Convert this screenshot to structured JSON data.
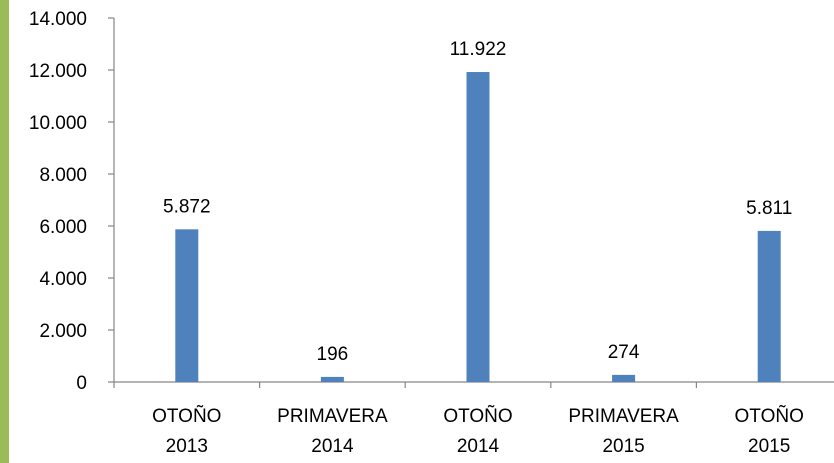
{
  "chart_data": {
    "type": "bar",
    "categories": [
      [
        "OTOÑO",
        "2013"
      ],
      [
        "PRIMAVERA",
        "2014"
      ],
      [
        "OTOÑO",
        "2014"
      ],
      [
        "PRIMAVERA",
        "2015"
      ],
      [
        "OTOÑO",
        "2015"
      ]
    ],
    "values": [
      5872,
      196,
      11922,
      274,
      5811
    ],
    "data_labels": [
      "5.872",
      "196",
      "11.922",
      "274",
      "5.811"
    ],
    "y_ticks": [
      "0",
      "2.000",
      "4.000",
      "6.000",
      "8.000",
      "10.000",
      "12.000",
      "14.000"
    ],
    "ylim": [
      0,
      14000
    ],
    "ytick_step": 2000,
    "grid": false,
    "legend": "none",
    "title": "",
    "xlabel": "",
    "ylabel": ""
  },
  "colors": {
    "bar": "#4f81bd",
    "axis": "#868686",
    "left_strip": "#9bbb59"
  }
}
